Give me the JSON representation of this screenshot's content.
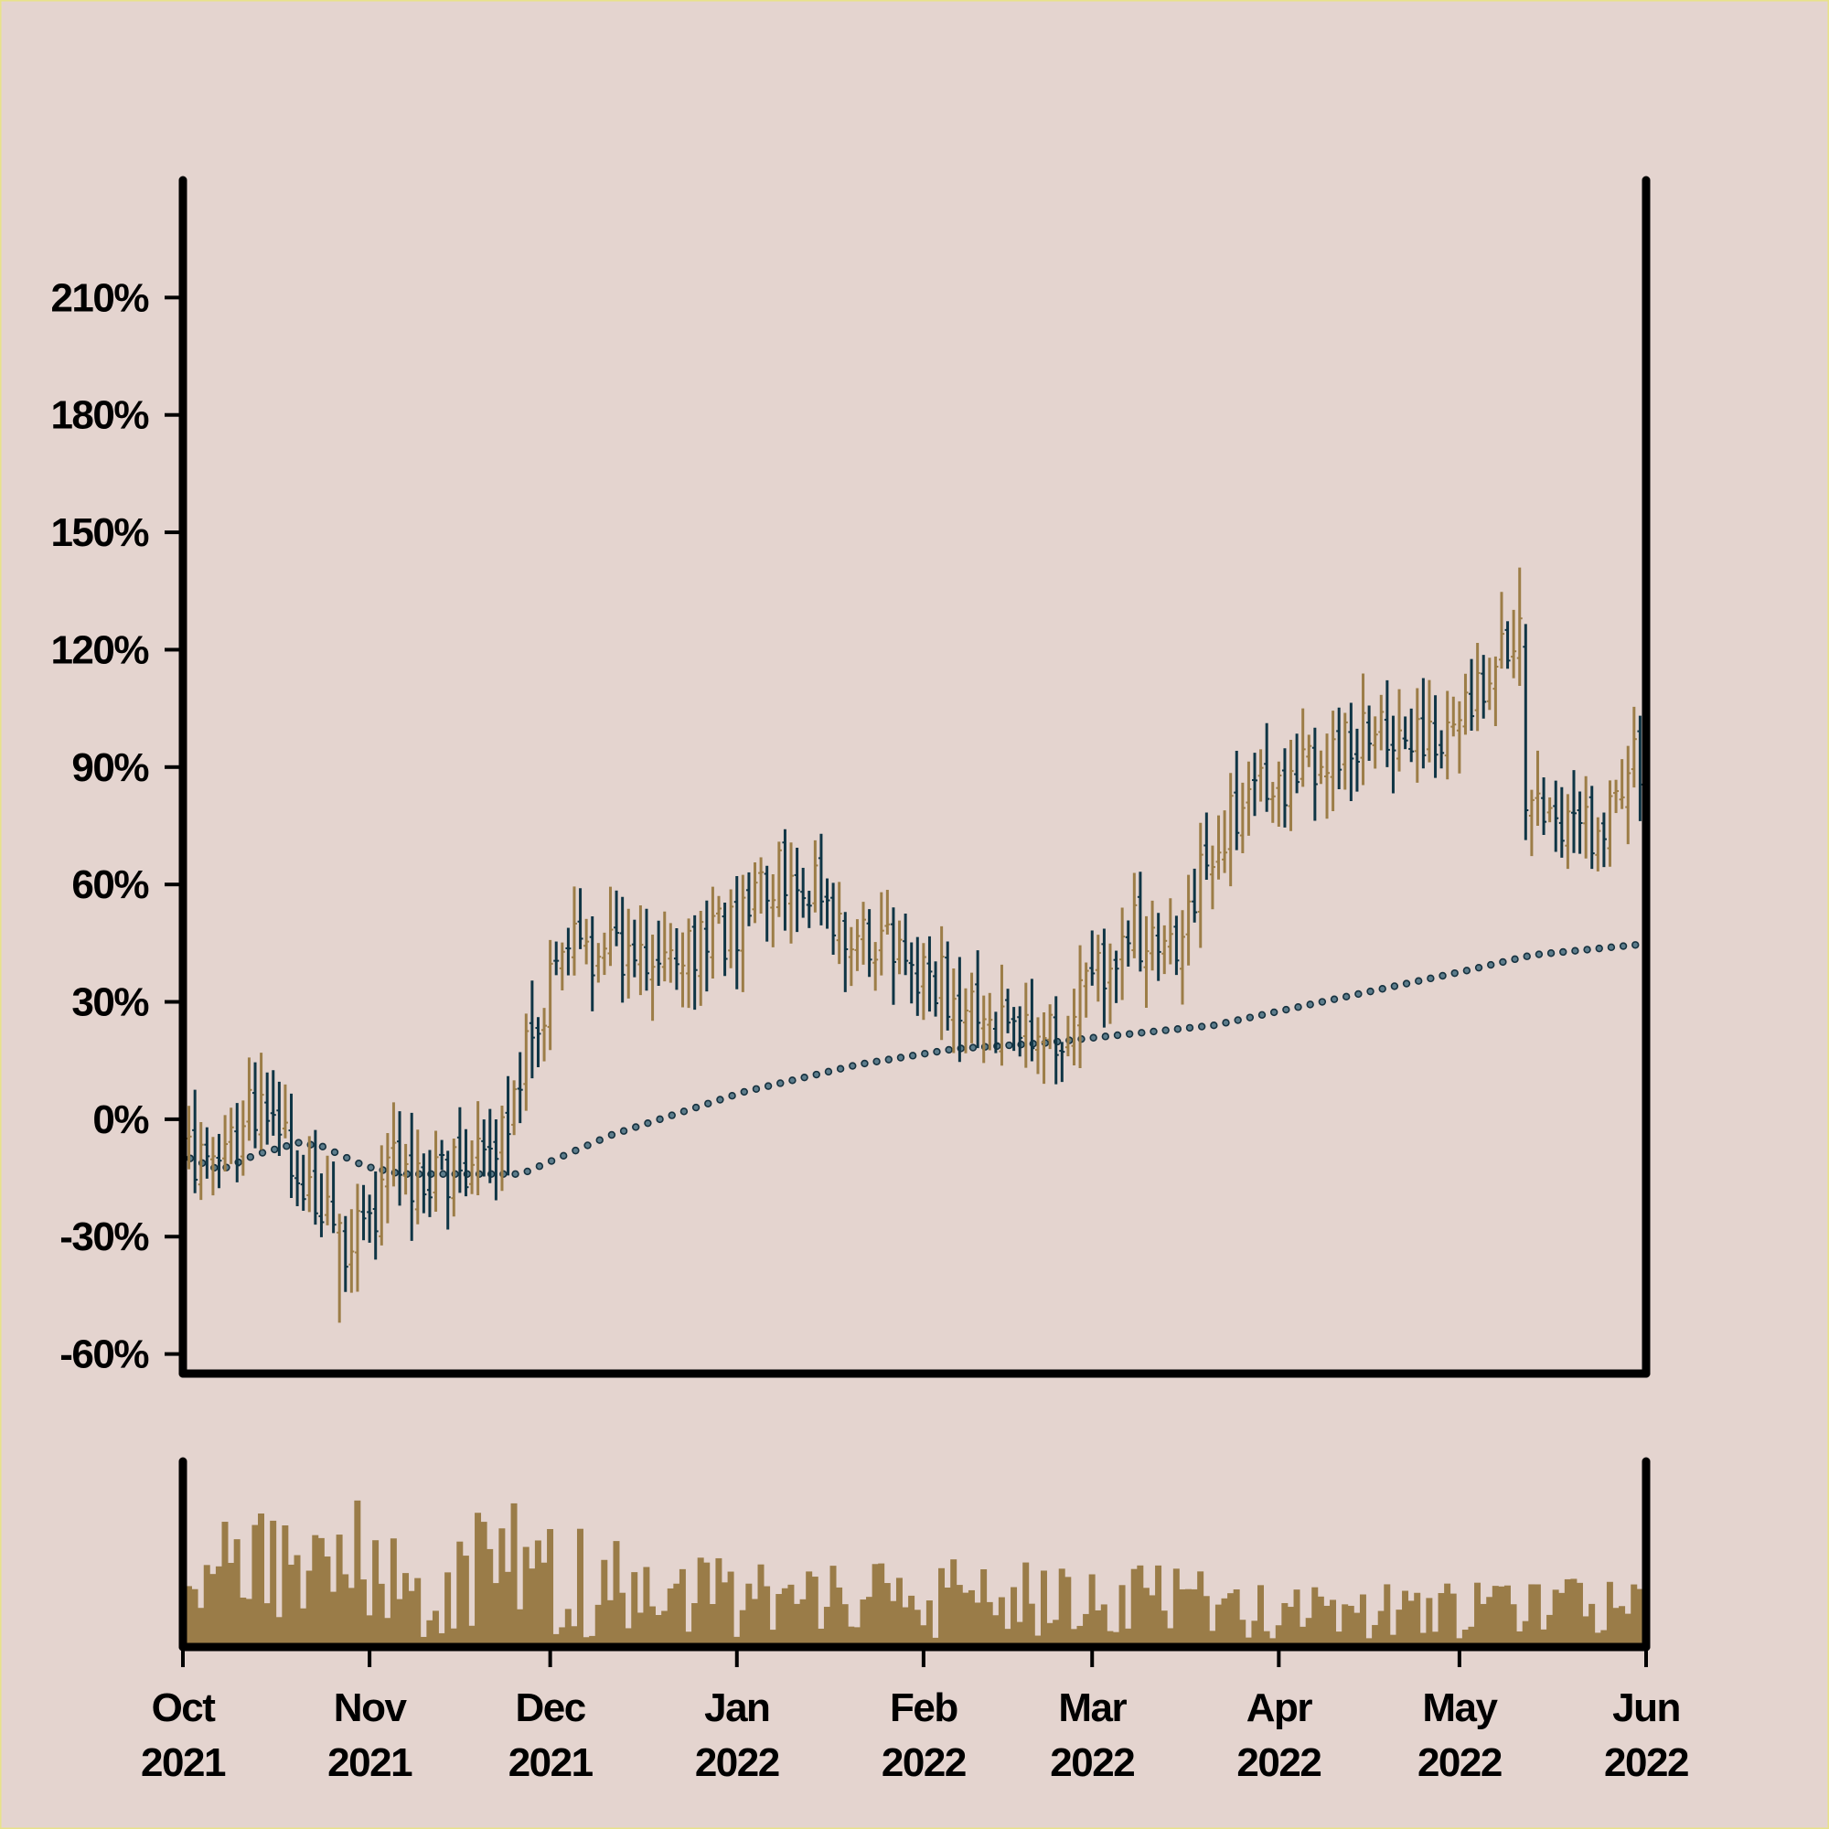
{
  "chart_data": [
    {
      "type": "ohlc",
      "title": "",
      "xlabel": "",
      "ylabel": "",
      "ylim": [
        -65,
        240
      ],
      "y_ticks": [
        "-60%",
        "-30%",
        "0%",
        "30%",
        "60%",
        "90%",
        "120%",
        "150%",
        "180%",
        "210%"
      ],
      "y_tick_values": [
        -60,
        -30,
        0,
        30,
        60,
        90,
        120,
        150,
        180,
        210
      ],
      "x_range": [
        "2021-10-01",
        "2022-06-01"
      ],
      "x_ticks": [
        {
          "month": "Oct",
          "year": "2021",
          "date": "2021-10-01"
        },
        {
          "month": "Nov",
          "year": "2021",
          "date": "2021-11-01"
        },
        {
          "month": "Dec",
          "year": "2021",
          "date": "2021-12-01"
        },
        {
          "month": "Jan",
          "year": "2022",
          "date": "2022-01-01"
        },
        {
          "month": "Feb",
          "year": "2022",
          "date": "2022-02-01"
        },
        {
          "month": "Mar",
          "year": "2022",
          "date": "2022-03-01"
        },
        {
          "month": "Apr",
          "year": "2022",
          "date": "2022-04-01"
        },
        {
          "month": "May",
          "year": "2022",
          "date": "2022-05-01"
        },
        {
          "month": "Jun",
          "year": "2022",
          "date": "2022-06-01"
        }
      ],
      "grid": false,
      "up_color": "#9c7d47",
      "down_color": "#0f3545",
      "moving_average_color": "#16313f",
      "close_anchors": [
        {
          "date": "2021-10-01",
          "value": -5
        },
        {
          "date": "2021-10-06",
          "value": -12
        },
        {
          "date": "2021-10-13",
          "value": 2
        },
        {
          "date": "2021-10-17",
          "value": -2
        },
        {
          "date": "2021-10-22",
          "value": -18
        },
        {
          "date": "2021-10-27",
          "value": -33
        },
        {
          "date": "2021-11-01",
          "value": -28
        },
        {
          "date": "2021-11-05",
          "value": -12
        },
        {
          "date": "2021-11-10",
          "value": -16
        },
        {
          "date": "2021-11-16",
          "value": -14
        },
        {
          "date": "2021-11-22",
          "value": -10
        },
        {
          "date": "2021-11-27",
          "value": 18
        },
        {
          "date": "2021-12-04",
          "value": 48
        },
        {
          "date": "2021-12-12",
          "value": 40
        },
        {
          "date": "2021-12-20",
          "value": 45
        },
        {
          "date": "2021-12-28",
          "value": 46
        },
        {
          "date": "2022-01-03",
          "value": 52
        },
        {
          "date": "2022-01-11",
          "value": 66
        },
        {
          "date": "2022-01-17",
          "value": 48
        },
        {
          "date": "2022-01-25",
          "value": 45
        },
        {
          "date": "2022-02-02",
          "value": 36
        },
        {
          "date": "2022-02-09",
          "value": 30
        },
        {
          "date": "2022-02-15",
          "value": 24
        },
        {
          "date": "2022-02-23",
          "value": 20
        },
        {
          "date": "2022-03-02",
          "value": 38
        },
        {
          "date": "2022-03-08",
          "value": 48
        },
        {
          "date": "2022-03-14",
          "value": 42
        },
        {
          "date": "2022-03-21",
          "value": 68
        },
        {
          "date": "2022-03-27",
          "value": 82
        },
        {
          "date": "2022-04-04",
          "value": 88
        },
        {
          "date": "2022-04-10",
          "value": 96
        },
        {
          "date": "2022-04-18",
          "value": 100
        },
        {
          "date": "2022-04-24",
          "value": 100
        },
        {
          "date": "2022-04-30",
          "value": 96
        },
        {
          "date": "2022-05-07",
          "value": 114
        },
        {
          "date": "2022-05-11",
          "value": 128
        },
        {
          "date": "2022-05-12",
          "value": 80
        },
        {
          "date": "2022-05-17",
          "value": 70
        },
        {
          "date": "2022-05-22",
          "value": 72
        },
        {
          "date": "2022-05-28",
          "value": 86
        },
        {
          "date": "2022-06-01",
          "value": 95
        }
      ],
      "moving_average_anchors": [
        {
          "date": "2021-10-01",
          "value": -10
        },
        {
          "date": "2021-10-06",
          "value": -13
        },
        {
          "date": "2021-10-12",
          "value": -9
        },
        {
          "date": "2021-10-19",
          "value": -6
        },
        {
          "date": "2021-10-23",
          "value": -7
        },
        {
          "date": "2021-10-30",
          "value": -12
        },
        {
          "date": "2021-11-05",
          "value": -14
        },
        {
          "date": "2021-11-25",
          "value": -14
        },
        {
          "date": "2021-12-10",
          "value": -4
        },
        {
          "date": "2022-01-01",
          "value": 7
        },
        {
          "date": "2022-01-20",
          "value": 14
        },
        {
          "date": "2022-02-05",
          "value": 18
        },
        {
          "date": "2022-02-20",
          "value": 19.5
        },
        {
          "date": "2022-03-01",
          "value": 21
        },
        {
          "date": "2022-03-20",
          "value": 24
        },
        {
          "date": "2022-04-10",
          "value": 31
        },
        {
          "date": "2022-05-01",
          "value": 38
        },
        {
          "date": "2022-05-12",
          "value": 42
        },
        {
          "date": "2022-06-01",
          "value": 45
        }
      ],
      "price_extremes": {
        "max_high": 141,
        "min_low": -52
      }
    },
    {
      "type": "bar",
      "title": "",
      "series_name": "",
      "x_range": [
        "2021-10-01",
        "2022-06-01"
      ],
      "bar_color": "#9a7c48",
      "relative_volume_anchors": [
        {
          "date": "2021-10-01",
          "value": 0.55
        },
        {
          "date": "2021-10-15",
          "value": 0.5
        },
        {
          "date": "2021-10-30",
          "value": 0.6
        },
        {
          "date": "2021-11-10",
          "value": 0.45
        },
        {
          "date": "2021-11-20",
          "value": 0.55
        },
        {
          "date": "2021-12-05",
          "value": 0.48
        },
        {
          "date": "2021-12-20",
          "value": 0.38
        },
        {
          "date": "2022-01-10",
          "value": 0.3
        },
        {
          "date": "2022-02-10",
          "value": 0.33
        },
        {
          "date": "2022-03-10",
          "value": 0.3
        },
        {
          "date": "2022-04-10",
          "value": 0.22
        },
        {
          "date": "2022-05-10",
          "value": 0.24
        },
        {
          "date": "2022-06-01",
          "value": 0.25
        }
      ]
    }
  ]
}
